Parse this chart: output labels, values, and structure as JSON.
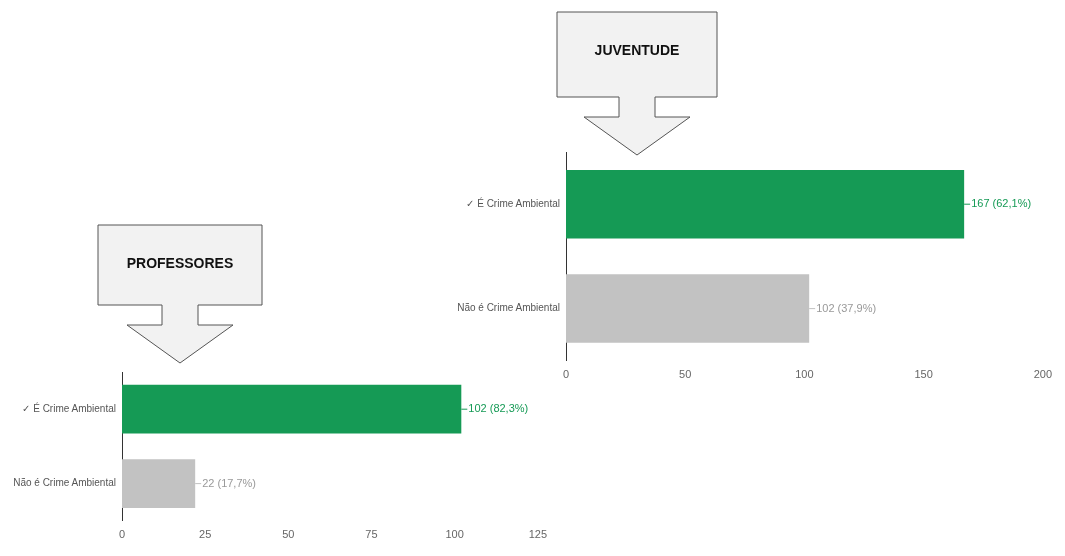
{
  "chart_data": [
    {
      "type": "bar",
      "orientation": "horizontal",
      "title": "JUVENTUDE",
      "categories": [
        "✓ É Crime Ambiental",
        "Não é Crime Ambiental"
      ],
      "values": [
        167,
        102
      ],
      "colors": [
        "#159a55",
        "#c2c2c2"
      ],
      "value_labels": [
        "167 (62,1%)",
        "102 (37,9%)"
      ],
      "xlim": [
        0,
        200
      ],
      "xticks": [
        0,
        50,
        100,
        150,
        200
      ],
      "grid": false,
      "legend": false
    },
    {
      "type": "bar",
      "orientation": "horizontal",
      "title": "PROFESSORES",
      "categories": [
        "✓ É Crime Ambiental",
        "Não é Crime Ambiental"
      ],
      "values": [
        102,
        22
      ],
      "colors": [
        "#159a55",
        "#c2c2c2"
      ],
      "value_labels": [
        "102 (82,3%)",
        "22 (17,7%)"
      ],
      "xlim": [
        0,
        125
      ],
      "xticks": [
        0,
        25,
        50,
        75,
        100,
        125
      ],
      "grid": false,
      "legend": false
    }
  ]
}
